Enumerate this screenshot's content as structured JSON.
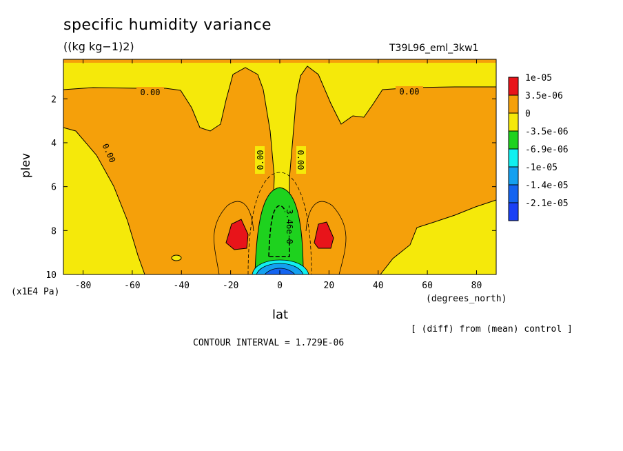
{
  "chart_data": {
    "type": "heatmap",
    "title": "specific humidity variance",
    "units": "((kg kg−1)2)",
    "run_label": "T39L96_eml_3kw1",
    "xlabel": "lat",
    "x_unit": "(degrees_north)",
    "ylabel": "plev",
    "y_unit": "(x1E4 Pa)",
    "xlim": [
      -88,
      88
    ],
    "ylim": [
      0.2,
      10
    ],
    "y_inverted": true,
    "x_ticks": [
      "-80",
      "-60",
      "-40",
      "-20",
      "0",
      "20",
      "40",
      "60",
      "80"
    ],
    "x_tick_values": [
      -80,
      -60,
      -40,
      -20,
      0,
      20,
      40,
      60,
      80
    ],
    "y_ticks": [
      "2",
      "4",
      "6",
      "8",
      "10"
    ],
    "y_tick_values": [
      2,
      4,
      6,
      8,
      10
    ],
    "legend": [
      {
        "label": "1e-05",
        "color": "#e8141a"
      },
      {
        "label": "3.5e-06",
        "color": "#f5a00a"
      },
      {
        "label": "0",
        "color": "#f5e90a"
      },
      {
        "label": "-3.5e-06",
        "color": "#1ed21e"
      },
      {
        "label": "-6.9e-06",
        "color": "#10f0f0"
      },
      {
        "label": "-1e-05",
        "color": "#14a0f0"
      },
      {
        "label": "-1.4e-05",
        "color": "#1464f0"
      },
      {
        "label": "-2.1e-05",
        "color": "#1a40f5"
      }
    ],
    "contour_labels": [
      "0.00",
      "0.00",
      "0.00",
      "0.00",
      "0.00",
      "-3.46e-0"
    ],
    "contour_interval_text": "CONTOUR INTERVAL = 1.729E-06",
    "note": "[ (diff) from (mean) control ]",
    "colors": {
      "yellow": "#f5e90a",
      "orange": "#f5a00a",
      "red": "#e8141a",
      "green": "#1ed21e",
      "cyan": "#10f0f0",
      "lightblue": "#14a0f0",
      "blue": "#1464f0"
    }
  }
}
